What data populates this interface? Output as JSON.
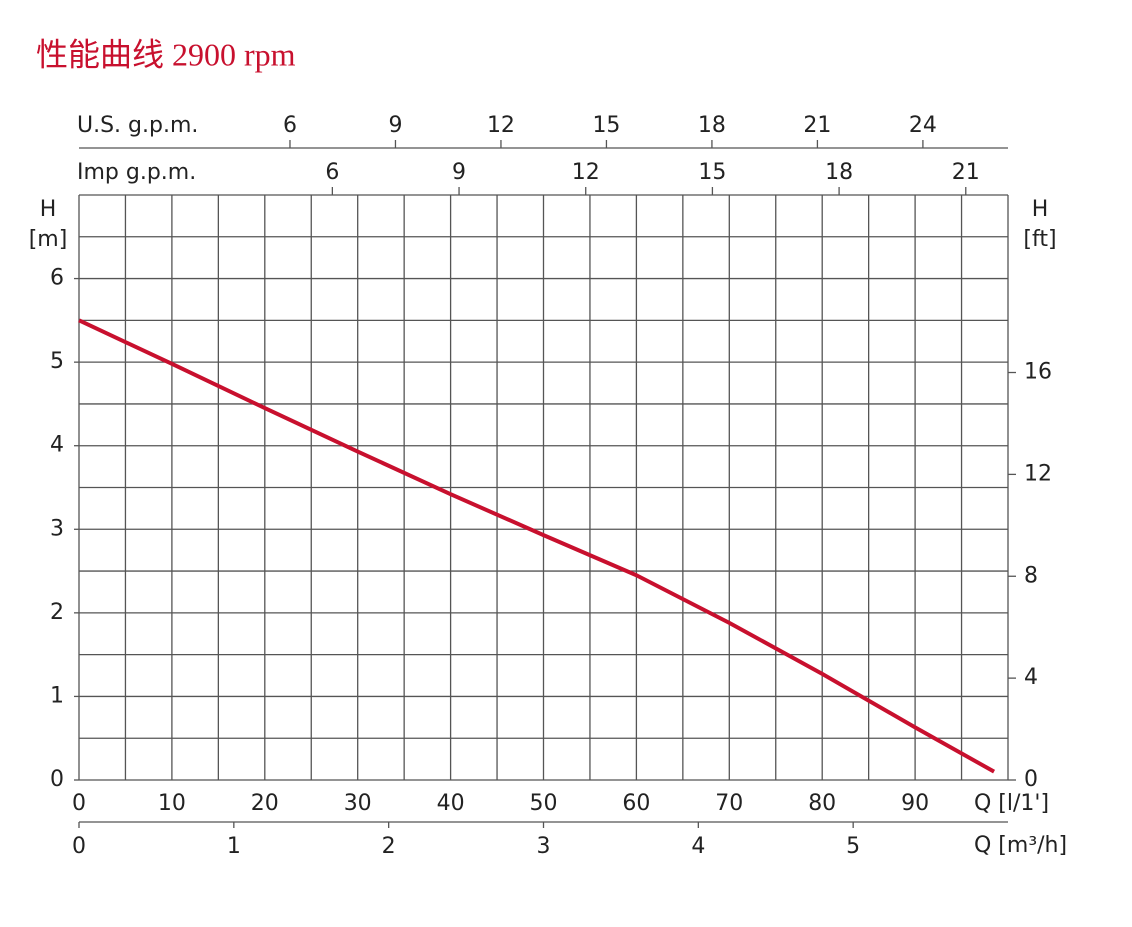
{
  "chart_data": {
    "type": "line",
    "title": "性能曲线 2900 rpm",
    "x_label": "Q [l/1']",
    "y_label": "H",
    "y_unit": "[m]",
    "y2_label": "H",
    "y2_unit": "[ft]",
    "x": [
      0,
      10,
      20,
      30,
      40,
      50,
      60,
      70,
      80,
      90,
      98.5
    ],
    "series": [
      {
        "color": "#c8102e",
        "values": [
          5.5,
          4.98,
          4.45,
          3.93,
          3.42,
          2.93,
          2.45,
          1.88,
          1.27,
          0.63,
          0.1
        ]
      }
    ],
    "xlim": [
      0,
      100
    ],
    "xticks": [
      0,
      10,
      20,
      30,
      40,
      50,
      60,
      70,
      80,
      90
    ],
    "ylim": [
      0,
      7
    ],
    "yticks": [
      0,
      1,
      2,
      3,
      4,
      5,
      6
    ],
    "y2lim": [
      0,
      22.97
    ],
    "y2ticks": [
      0,
      4,
      8,
      12,
      16
    ],
    "grid": true,
    "xgrid": [
      5,
      10,
      15,
      20,
      25,
      30,
      35,
      40,
      45,
      50,
      55,
      60,
      65,
      70,
      75,
      80,
      85,
      90,
      95
    ],
    "ygrid": [
      0.5,
      1,
      1.5,
      2,
      2.5,
      3,
      3.5,
      4,
      4.5,
      5,
      5.5,
      6,
      6.5
    ],
    "x2": {
      "label": "Q [m³/h]",
      "lim": [
        0,
        6
      ],
      "ticks": [
        0,
        1,
        2,
        3,
        4,
        5
      ]
    },
    "top_axes": [
      {
        "label": "U.S. g.p.m.",
        "lim": [
          0,
          26.42
        ],
        "ticks": [
          6,
          9,
          12,
          15,
          18,
          21,
          24
        ]
      },
      {
        "label": "Imp g.p.m.",
        "lim": [
          0,
          22.0
        ],
        "ticks": [
          6,
          9,
          12,
          15,
          18,
          21
        ]
      }
    ]
  }
}
